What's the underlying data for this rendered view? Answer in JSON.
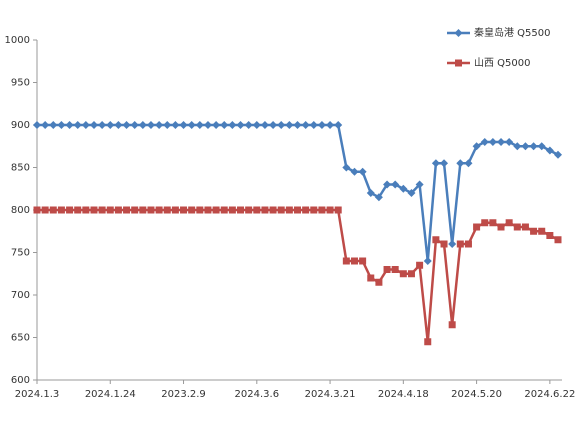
{
  "chart_data": {
    "type": "line",
    "categories": [
      "2024.1.3",
      null,
      null,
      null,
      null,
      null,
      null,
      null,
      null,
      "2024.1.24",
      null,
      null,
      null,
      null,
      null,
      null,
      null,
      null,
      "2023.2.9",
      null,
      null,
      null,
      null,
      null,
      null,
      null,
      null,
      "2024.3.6",
      null,
      null,
      null,
      null,
      null,
      null,
      null,
      null,
      "2024.3.21",
      null,
      null,
      null,
      null,
      null,
      null,
      null,
      null,
      "2024.4.18",
      null,
      null,
      null,
      null,
      null,
      null,
      null,
      null,
      "2024.5.20",
      null,
      null,
      null,
      null,
      null,
      null,
      null,
      null,
      "2024.6.22",
      null
    ],
    "series": [
      {
        "name": "秦皇岛港 Q5500",
        "color": "#4a7ebb",
        "marker": "diamond",
        "values": [
          900,
          900,
          900,
          900,
          900,
          900,
          900,
          900,
          900,
          900,
          900,
          900,
          900,
          900,
          900,
          900,
          900,
          900,
          900,
          900,
          900,
          900,
          900,
          900,
          900,
          900,
          900,
          900,
          900,
          900,
          900,
          900,
          900,
          900,
          900,
          900,
          900,
          900,
          850,
          845,
          845,
          820,
          815,
          830,
          830,
          825,
          820,
          830,
          740,
          855,
          855,
          760,
          855,
          855,
          875,
          880,
          880,
          880,
          880,
          875,
          875,
          875,
          875,
          870,
          865
        ]
      },
      {
        "name": "山西 Q5000",
        "color": "#be4b48",
        "marker": "square",
        "values": [
          800,
          800,
          800,
          800,
          800,
          800,
          800,
          800,
          800,
          800,
          800,
          800,
          800,
          800,
          800,
          800,
          800,
          800,
          800,
          800,
          800,
          800,
          800,
          800,
          800,
          800,
          800,
          800,
          800,
          800,
          800,
          800,
          800,
          800,
          800,
          800,
          800,
          800,
          740,
          740,
          740,
          720,
          715,
          730,
          730,
          725,
          725,
          735,
          645,
          765,
          760,
          665,
          760,
          760,
          780,
          785,
          785,
          780,
          785,
          780,
          780,
          775,
          775,
          770,
          765
        ]
      }
    ],
    "ylim": [
      600,
      1000
    ],
    "yticks": [
      600,
      650,
      700,
      750,
      800,
      850,
      900,
      950,
      1000
    ],
    "grid": false,
    "legend": "top-right"
  }
}
